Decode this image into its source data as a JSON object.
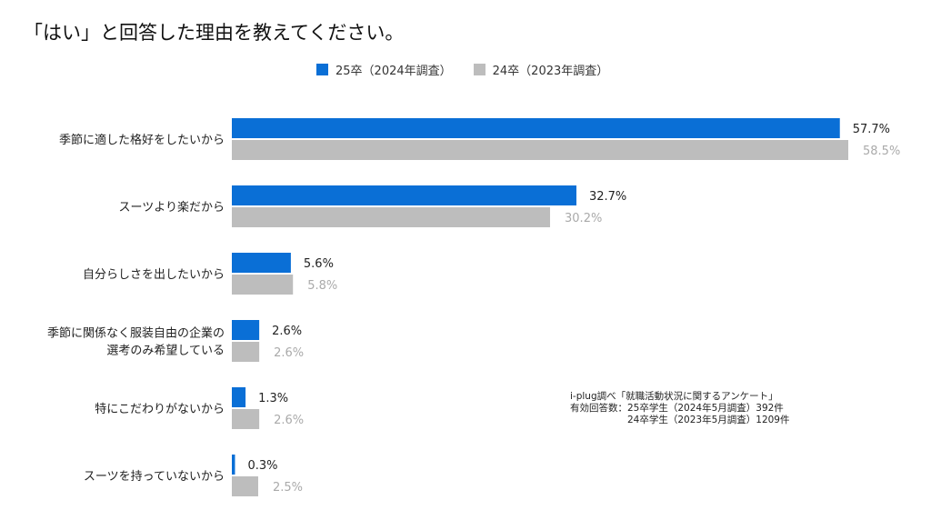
{
  "chart_data": {
    "type": "bar",
    "orientation": "horizontal",
    "title": "「はい」と回答した理由を教えてください。",
    "categories": [
      "季節に適した格好をしたいから",
      "スーツより楽だから",
      "自分らしさを出したいから",
      "季節に関係なく服装自由の企業の\n選考のみ希望している",
      "特にこだわりがないから",
      "スーツを持っていないから"
    ],
    "series": [
      {
        "name": "25卒（2024年調査）",
        "color": "#0a6fd6",
        "values": [
          57.7,
          32.7,
          5.6,
          2.6,
          1.3,
          0.3
        ]
      },
      {
        "name": "24卒（2023年調査）",
        "color": "#bdbdbd",
        "values": [
          58.5,
          30.2,
          5.8,
          2.6,
          2.6,
          2.5
        ]
      }
    ],
    "value_suffix": "%",
    "xlim": [
      0,
      60
    ],
    "grid": false,
    "legend_placement": "top-center",
    "annotation": {
      "line1": "i-plug調べ「就職活動状況に関するアンケート」",
      "line2": "有効回答数：25卒学生（2024年5月調査）392件",
      "line3": "　　　　　　24卒学生（2023年5月調査）1209件"
    }
  }
}
